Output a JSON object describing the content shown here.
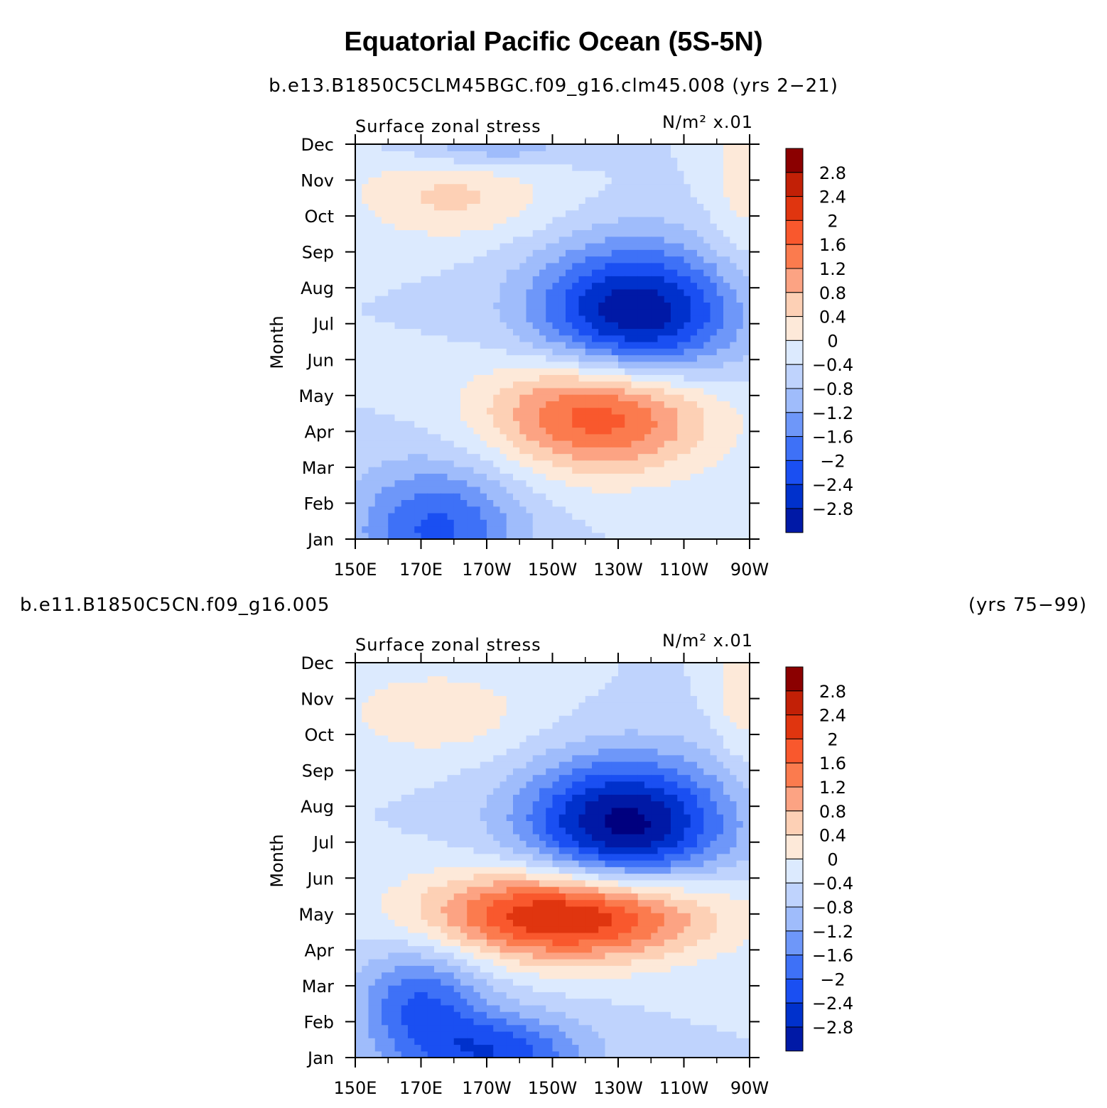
{
  "title": "Equatorial Pacific Ocean (5S-5N)",
  "colors": {
    "levels": [
      "#00007f",
      "#0019a6",
      "#0031cc",
      "#1a4ff2",
      "#3e71f7",
      "#6e97f9",
      "#9fbcfb",
      "#bfd3fd",
      "#dceafe",
      "#fde9d9",
      "#fdd0b5",
      "#fca383",
      "#fb7b4e",
      "#f9582d",
      "#e0350f",
      "#c22006",
      "#8b0000"
    ]
  },
  "chart_data": [
    {
      "type": "heatmap",
      "run": "b.e13.B1850C5CLM45BGC.f09_g16.clm45.008 (yrs 2−21)",
      "left_title": "Surface zonal stress",
      "units": "N/m² x.01",
      "ylabel": "Month",
      "y_ticks": [
        "Jan",
        "Feb",
        "Mar",
        "Apr",
        "May",
        "Jun",
        "Jul",
        "Aug",
        "Sep",
        "Oct",
        "Nov",
        "Dec"
      ],
      "x_ticks": [
        "150E",
        "170E",
        "170W",
        "150W",
        "130W",
        "110W",
        "90W"
      ],
      "x_range": [
        150,
        270
      ],
      "colorbar_labels": [
        "2.8",
        "2.4",
        "2",
        "1.6",
        "1.2",
        "0.8",
        "0.4",
        "0",
        "−0.4",
        "−0.8",
        "−1.2",
        "−1.6",
        "−2",
        "−2.4",
        "−2.8"
      ],
      "colorbar_levels": [
        -2.8,
        -2.4,
        -2,
        -1.6,
        -1.2,
        -0.8,
        -0.4,
        0,
        0.4,
        0.8,
        1.2,
        1.6,
        2,
        2.4,
        2.8
      ],
      "features": [
        {
          "name": "negative core (Jul-Aug)",
          "lon": 235,
          "month": 6.2,
          "peak": -2.9,
          "sx": 22,
          "sy": 1.4
        },
        {
          "name": "positive core (Apr-May)",
          "lon": 225,
          "month": 3.6,
          "peak": 2.5,
          "sx": 24,
          "sy": 1.2
        },
        {
          "name": "negative Jan-Feb west",
          "lon": 175,
          "month": 0.3,
          "peak": -1.7,
          "sx": 18,
          "sy": 1.3
        },
        {
          "name": "positive Oct-Nov",
          "lon": 180,
          "month": 9.6,
          "peak": 0.9,
          "sx": 22,
          "sy": 0.9
        },
        {
          "name": "negative Dec",
          "lon": 190,
          "month": 11,
          "peak": -0.9,
          "sx": 18,
          "sy": 0.5
        },
        {
          "name": "positive east Sep-Dec",
          "lon": 268,
          "month": 10,
          "peak": 0.6,
          "sx": 8,
          "sy": 2
        }
      ]
    },
    {
      "type": "heatmap",
      "run_left": "b.e11.B1850C5CN.f09_g16.005",
      "run_right": "(yrs 75−99)",
      "left_title": "Surface zonal stress",
      "units": "N/m² x.01",
      "ylabel": "Month",
      "y_ticks": [
        "Jan",
        "Feb",
        "Mar",
        "Apr",
        "May",
        "Jun",
        "Jul",
        "Aug",
        "Sep",
        "Oct",
        "Nov",
        "Dec"
      ],
      "x_ticks": [
        "150E",
        "170E",
        "170W",
        "150W",
        "130W",
        "110W",
        "90W"
      ],
      "x_range": [
        150,
        270
      ],
      "colorbar_labels": [
        "2.8",
        "2.4",
        "2",
        "1.6",
        "1.2",
        "0.8",
        "0.4",
        "0",
        "−0.4",
        "−0.8",
        "−1.2",
        "−1.6",
        "−2",
        "−2.4",
        "−2.8"
      ],
      "colorbar_levels": [
        -2.8,
        -2.4,
        -2,
        -1.6,
        -1.2,
        -0.8,
        -0.4,
        0,
        0.4,
        0.8,
        1.2,
        1.6,
        2,
        2.4,
        2.8
      ],
      "features": [
        {
          "name": "negative core (Jul-Aug)",
          "lon": 232,
          "month": 6.5,
          "peak": -3.0,
          "sx": 22,
          "sy": 1.3
        },
        {
          "name": "positive core (May)",
          "lon": 215,
          "month": 4.0,
          "peak": 3.1,
          "sx": 30,
          "sy": 0.9
        },
        {
          "name": "negative Feb-Mar west",
          "lon": 170,
          "month": 1.5,
          "peak": -1.6,
          "sx": 14,
          "sy": 1.2
        },
        {
          "name": "negative Jan",
          "lon": 195,
          "month": 0.1,
          "peak": -1.8,
          "sx": 18,
          "sy": 0.8
        },
        {
          "name": "positive Oct-Nov",
          "lon": 175,
          "month": 9.6,
          "peak": 0.7,
          "sx": 22,
          "sy": 0.9
        },
        {
          "name": "positive east Dec",
          "lon": 268,
          "month": 10.5,
          "peak": 0.8,
          "sx": 6,
          "sy": 1.5
        }
      ]
    }
  ]
}
